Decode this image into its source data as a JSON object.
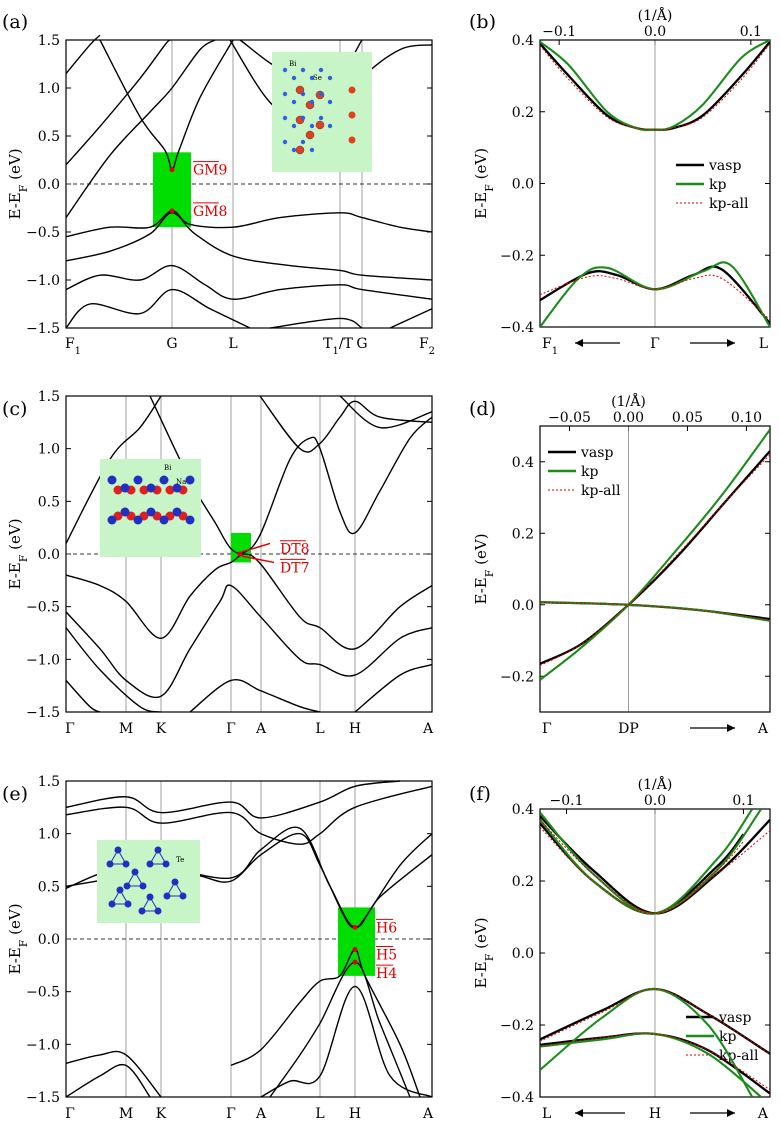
{
  "colors": {
    "vasp": "#000000",
    "kp": "#1a8c1a",
    "kp_all": "#e00000",
    "highlight": "#00dd00",
    "inset_bg": "#c8f5c8",
    "crossing_label": "#e00000"
  },
  "chart_data": [
    {
      "type": "line",
      "panel_label": "(a)",
      "ylabel": "E-E_F (eV)",
      "ylim": [
        -1.5,
        1.5
      ],
      "yticks": [
        "-1.5",
        "-1.0",
        "-0.5",
        "0.0",
        "0.5",
        "1.0",
        "1.5"
      ],
      "kpath": [
        "F1",
        "G",
        "L",
        "T1/T",
        "G",
        "F2"
      ],
      "kpath_labels": {
        "F": "F",
        "one": "1",
        "G": "G",
        "L": "L",
        "T": "T",
        "slashT": "/T",
        "two": "2"
      },
      "annotations": [
        {
          "text": "GM9",
          "energy": 0.15
        },
        {
          "text": "GM8",
          "energy": -0.28
        }
      ],
      "inset_atoms": [
        "Bi",
        "Se"
      ],
      "highlight_energy": [
        -0.45,
        0.33
      ]
    },
    {
      "type": "line",
      "panel_label": "(b)",
      "top_axis_label": "(1/Å)",
      "top_ticks": [
        "-0.1",
        "0.0",
        "0.1"
      ],
      "ylabel": "E-E_F (eV)",
      "ylim": [
        -0.4,
        0.4
      ],
      "yticks": [
        "-0.4",
        "-0.2",
        "0.0",
        "0.2",
        "0.4"
      ],
      "x_labels": [
        "F1",
        "Γ",
        "L"
      ],
      "legend": [
        "vasp",
        "kp",
        "kp-all"
      ],
      "series": [
        {
          "name": "vasp",
          "conduction": [
            [
              -0.12,
              0.39
            ],
            [
              -0.09,
              0.3
            ],
            [
              -0.05,
              0.19
            ],
            [
              -0.02,
              0.155
            ],
            [
              0.0,
              0.15
            ],
            [
              0.02,
              0.155
            ],
            [
              0.05,
              0.19
            ],
            [
              0.09,
              0.3
            ],
            [
              0.12,
              0.395
            ]
          ],
          "valence": [
            [
              -0.12,
              -0.325
            ],
            [
              -0.07,
              -0.25
            ],
            [
              -0.04,
              -0.255
            ],
            [
              0.0,
              -0.295
            ],
            [
              0.04,
              -0.255
            ],
            [
              0.07,
              -0.24
            ],
            [
              0.12,
              -0.39
            ]
          ]
        },
        {
          "name": "kp",
          "conduction": [
            [
              -0.12,
              0.395
            ],
            [
              -0.09,
              0.33
            ],
            [
              -0.05,
              0.2
            ],
            [
              -0.02,
              0.155
            ],
            [
              0.0,
              0.15
            ],
            [
              0.02,
              0.16
            ],
            [
              0.05,
              0.22
            ],
            [
              0.09,
              0.35
            ],
            [
              0.12,
              0.4
            ]
          ],
          "valence": [
            [
              -0.12,
              -0.4
            ],
            [
              -0.08,
              -0.265
            ],
            [
              -0.05,
              -0.235
            ],
            [
              0.0,
              -0.295
            ],
            [
              0.05,
              -0.245
            ],
            [
              0.08,
              -0.23
            ],
            [
              0.12,
              -0.4
            ]
          ]
        },
        {
          "name": "kp-all",
          "conduction": [
            [
              -0.12,
              0.385
            ],
            [
              -0.09,
              0.29
            ],
            [
              -0.05,
              0.185
            ],
            [
              -0.02,
              0.155
            ],
            [
              0.0,
              0.15
            ],
            [
              0.02,
              0.155
            ],
            [
              0.05,
              0.185
            ],
            [
              0.09,
              0.29
            ],
            [
              0.12,
              0.39
            ]
          ],
          "valence": [
            [
              -0.12,
              -0.31
            ],
            [
              -0.07,
              -0.26
            ],
            [
              -0.04,
              -0.265
            ],
            [
              0.0,
              -0.295
            ],
            [
              0.04,
              -0.265
            ],
            [
              0.07,
              -0.265
            ],
            [
              0.12,
              -0.38
            ]
          ]
        }
      ]
    },
    {
      "type": "line",
      "panel_label": "(c)",
      "ylabel": "E-E_F (eV)",
      "ylim": [
        -1.5,
        1.5
      ],
      "yticks": [
        "-1.5",
        "-1.0",
        "-0.5",
        "0.0",
        "0.5",
        "1.0",
        "1.5"
      ],
      "kpath": [
        "Γ",
        "M",
        "K",
        "Γ",
        "A",
        "L",
        "H",
        "A"
      ],
      "annotations": [
        {
          "text": "DT8",
          "energy": 0.05
        },
        {
          "text": "DT7",
          "energy": -0.05
        }
      ],
      "inset_atoms": [
        "Bi",
        "Na"
      ],
      "highlight_energy": [
        -0.08,
        0.2
      ]
    },
    {
      "type": "line",
      "panel_label": "(d)",
      "top_axis_label": "(1/Å)",
      "top_ticks": [
        "-0.05",
        "0.00",
        "0.05",
        "0.10"
      ],
      "ylabel": "E-E_F (eV)",
      "ylim": [
        -0.3,
        0.5
      ],
      "yticks": [
        "-0.2",
        "0.0",
        "0.2",
        "0.4"
      ],
      "x_labels": [
        "Γ",
        "DP",
        "A"
      ],
      "legend": [
        "vasp",
        "kp",
        "kp-all"
      ],
      "series": [
        {
          "name": "vasp",
          "upper": [
            [
              -0.075,
              -0.165
            ],
            [
              -0.04,
              -0.11
            ],
            [
              0.0,
              0.0
            ],
            [
              0.04,
              0.13
            ],
            [
              0.08,
              0.28
            ],
            [
              0.12,
              0.43
            ]
          ],
          "lower": [
            [
              -0.075,
              0.007
            ],
            [
              0.0,
              0.0
            ],
            [
              0.06,
              -0.015
            ],
            [
              0.12,
              -0.04
            ]
          ]
        },
        {
          "name": "kp",
          "upper": [
            [
              -0.075,
              -0.21
            ],
            [
              -0.04,
              -0.12
            ],
            [
              0.0,
              0.0
            ],
            [
              0.04,
              0.15
            ],
            [
              0.08,
              0.31
            ],
            [
              0.12,
              0.49
            ]
          ],
          "lower": [
            [
              -0.075,
              0.007
            ],
            [
              0.0,
              0.0
            ],
            [
              0.06,
              -0.015
            ],
            [
              0.12,
              -0.045
            ]
          ]
        },
        {
          "name": "kp-all",
          "upper": [
            [
              -0.075,
              -0.17
            ],
            [
              -0.04,
              -0.11
            ],
            [
              0.0,
              0.0
            ],
            [
              0.04,
              0.135
            ],
            [
              0.08,
              0.28
            ],
            [
              0.12,
              0.42
            ]
          ],
          "lower": [
            [
              -0.075,
              0.007
            ],
            [
              0.0,
              0.0
            ],
            [
              0.06,
              -0.016
            ],
            [
              0.12,
              -0.043
            ]
          ]
        }
      ]
    },
    {
      "type": "line",
      "panel_label": "(e)",
      "ylabel": "E-E_F (eV)",
      "ylim": [
        -1.5,
        1.5
      ],
      "yticks": [
        "-1.5",
        "-1.0",
        "-0.5",
        "0.0",
        "0.5",
        "1.0",
        "1.5"
      ],
      "kpath": [
        "Γ",
        "M",
        "K",
        "Γ",
        "A",
        "L",
        "H",
        "A"
      ],
      "annotations": [
        {
          "text": "H6",
          "energy": 0.11
        },
        {
          "text": "H5",
          "energy": -0.1
        },
        {
          "text": "H4",
          "energy": -0.22
        }
      ],
      "inset_atoms": [
        "Te"
      ],
      "highlight_energy": [
        -0.35,
        0.3
      ]
    },
    {
      "type": "line",
      "panel_label": "(f)",
      "top_axis_label": "(1/Å)",
      "top_ticks": [
        "-0.1",
        "0.0",
        "0.1"
      ],
      "ylabel": "E-E_F (eV)",
      "ylim": [
        -0.4,
        0.4
      ],
      "yticks": [
        "-0.4",
        "-0.2",
        "0.0",
        "0.2",
        "0.4"
      ],
      "x_labels": [
        "L",
        "H",
        "A"
      ],
      "legend": [
        "vasp",
        "kp",
        "kp-all"
      ],
      "series": [
        {
          "name": "vasp",
          "bands": [
            [
              [
                -0.13,
                0.38
              ],
              [
                -0.07,
                0.23
              ],
              [
                0.0,
                0.11
              ],
              [
                0.07,
                0.22
              ],
              [
                0.13,
                0.37
              ]
            ],
            [
              [
                -0.13,
                0.36
              ],
              [
                -0.07,
                0.2
              ],
              [
                0.0,
                0.11
              ],
              [
                0.07,
                0.24
              ],
              [
                0.1,
                0.33
              ]
            ],
            [
              [
                -0.13,
                -0.24
              ],
              [
                -0.06,
                -0.16
              ],
              [
                0.0,
                -0.1
              ],
              [
                0.06,
                -0.17
              ],
              [
                0.13,
                -0.28
              ]
            ],
            [
              [
                -0.13,
                -0.255
              ],
              [
                -0.06,
                -0.235
              ],
              [
                0.0,
                -0.225
              ],
              [
                0.06,
                -0.27
              ],
              [
                0.13,
                -0.39
              ]
            ]
          ]
        },
        {
          "name": "kp",
          "bands": [
            [
              [
                -0.13,
                0.39
              ],
              [
                -0.07,
                0.22
              ],
              [
                0.0,
                0.11
              ],
              [
                0.07,
                0.26
              ],
              [
                0.11,
                0.4
              ]
            ],
            [
              [
                -0.13,
                0.37
              ],
              [
                -0.07,
                0.2
              ],
              [
                0.0,
                0.11
              ],
              [
                0.07,
                0.23
              ],
              [
                0.12,
                0.4
              ]
            ],
            [
              [
                -0.13,
                -0.325
              ],
              [
                -0.06,
                -0.18
              ],
              [
                0.0,
                -0.1
              ],
              [
                0.06,
                -0.2
              ],
              [
                0.11,
                -0.4
              ]
            ],
            [
              [
                -0.13,
                -0.26
              ],
              [
                -0.06,
                -0.24
              ],
              [
                0.0,
                -0.225
              ],
              [
                0.06,
                -0.28
              ],
              [
                0.12,
                -0.4
              ]
            ]
          ]
        },
        {
          "name": "kp-all",
          "bands": [
            [
              [
                -0.13,
                0.37
              ],
              [
                -0.07,
                0.22
              ],
              [
                0.0,
                0.11
              ],
              [
                0.07,
                0.22
              ],
              [
                0.13,
                0.34
              ]
            ],
            [
              [
                -0.13,
                0.35
              ],
              [
                -0.07,
                0.2
              ],
              [
                0.0,
                0.11
              ],
              [
                0.07,
                0.23
              ],
              [
                0.1,
                0.31
              ]
            ],
            [
              [
                -0.13,
                -0.245
              ],
              [
                -0.06,
                -0.165
              ],
              [
                0.0,
                -0.1
              ],
              [
                0.06,
                -0.17
              ],
              [
                0.13,
                -0.28
              ]
            ],
            [
              [
                -0.13,
                -0.26
              ],
              [
                -0.06,
                -0.235
              ],
              [
                0.0,
                -0.225
              ],
              [
                0.06,
                -0.27
              ],
              [
                0.13,
                -0.38
              ]
            ]
          ]
        }
      ]
    }
  ]
}
